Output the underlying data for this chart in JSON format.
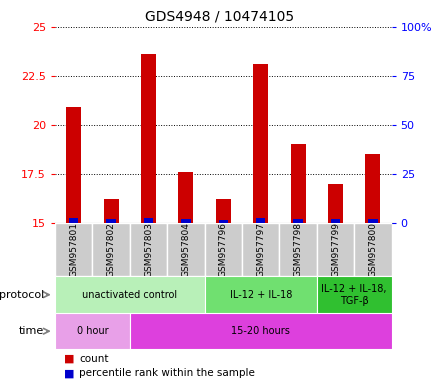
{
  "title": "GDS4948 / 10474105",
  "samples": [
    "GSM957801",
    "GSM957802",
    "GSM957803",
    "GSM957804",
    "GSM957796",
    "GSM957797",
    "GSM957798",
    "GSM957799",
    "GSM957800"
  ],
  "red_values": [
    20.9,
    16.2,
    23.6,
    17.6,
    16.2,
    23.1,
    19.0,
    17.0,
    18.5
  ],
  "blue_pct": [
    2.5,
    2.0,
    2.5,
    2.0,
    1.5,
    2.5,
    2.0,
    2.0,
    1.8
  ],
  "ylim_left": [
    15,
    25
  ],
  "ylim_right": [
    0,
    100
  ],
  "yticks_left": [
    15,
    17.5,
    20,
    22.5,
    25
  ],
  "yticks_right": [
    0,
    25,
    50,
    75,
    100
  ],
  "protocol_groups": [
    {
      "label": "unactivated control",
      "start": 0,
      "end": 4,
      "color": "#b8f0b8"
    },
    {
      "label": "IL-12 + IL-18",
      "start": 4,
      "end": 7,
      "color": "#70e070"
    },
    {
      "label": "IL-12 + IL-18,\nTGF-β",
      "start": 7,
      "end": 9,
      "color": "#30c030"
    }
  ],
  "time_groups": [
    {
      "label": "0 hour",
      "start": 0,
      "end": 2,
      "color": "#e8a0e8"
    },
    {
      "label": "15-20 hours",
      "start": 2,
      "end": 9,
      "color": "#dd40dd"
    }
  ],
  "bar_red": "#cc0000",
  "bar_blue": "#0000cc",
  "legend_count_color": "#cc0000",
  "legend_pct_color": "#0000cc",
  "protocol_label": "protocol",
  "time_label": "time",
  "legend_count": "count",
  "legend_pct": "percentile rank within the sample",
  "ybase": 15.0,
  "bar_width": 0.4,
  "blue_bar_width": 0.25,
  "sample_box_color": "#cccccc",
  "spine_color": "#888888",
  "grid_color": "#000000"
}
